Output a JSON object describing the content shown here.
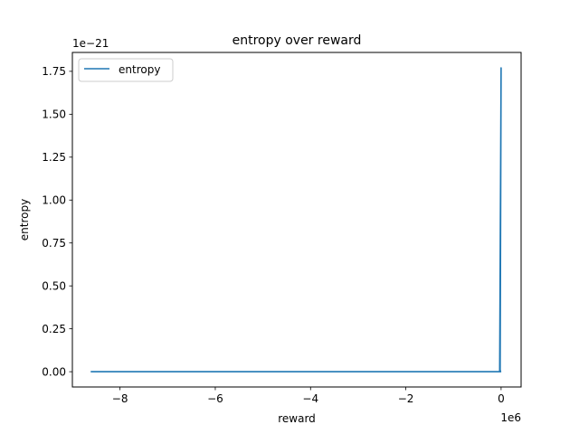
{
  "chart_data": {
    "type": "line",
    "title": "entropy over reward",
    "xlabel": "reward",
    "ylabel": "entropy",
    "x_offset_label": "1e6",
    "y_offset_label": "1e−21",
    "x_scale_factor": 1000000,
    "y_scale_factor": 1e-21,
    "xlim": [
      -9.0,
      0.42
    ],
    "ylim": [
      -0.089,
      1.86
    ],
    "x_ticks": [
      -8,
      -6,
      -4,
      -2,
      0
    ],
    "x_tick_labels": [
      "−8",
      "−6",
      "−4",
      "−2",
      "0"
    ],
    "y_ticks": [
      0.0,
      0.25,
      0.5,
      0.75,
      1.0,
      1.25,
      1.5,
      1.75
    ],
    "y_tick_labels": [
      "0.00",
      "0.25",
      "0.50",
      "0.75",
      "1.00",
      "1.25",
      "1.50",
      "1.75"
    ],
    "grid": false,
    "legend": {
      "position": "upper left",
      "entries": [
        "entropy"
      ]
    },
    "series": [
      {
        "name": "entropy",
        "color": "#1f77b4",
        "x": [
          -8.6,
          -0.05,
          -0.03,
          0.0,
          -0.02,
          -0.01,
          -8.6
        ],
        "y": [
          0.0,
          0.0,
          0.0,
          1.77,
          0.01,
          0.0,
          0.0
        ]
      }
    ]
  }
}
